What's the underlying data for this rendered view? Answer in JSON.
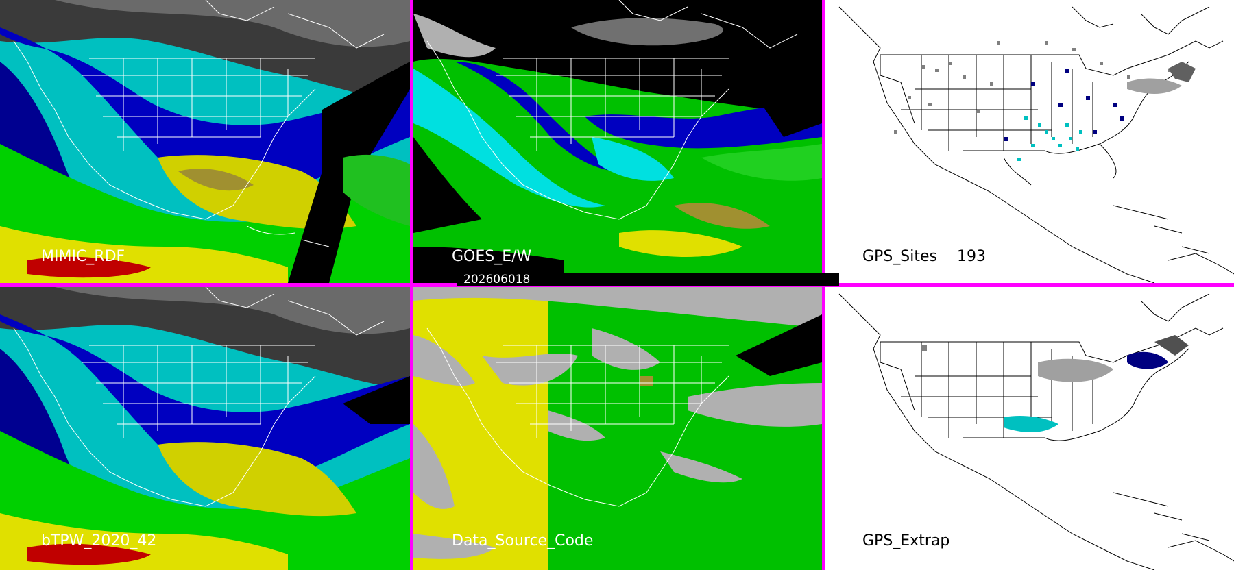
{
  "panels": {
    "mimic": {
      "label": "MIMIC_RDF"
    },
    "goes": {
      "label": "GOES_E/W"
    },
    "gps_sites": {
      "label": "GPS_Sites",
      "count": "193"
    },
    "btpw": {
      "label": "bTPW_2020_42"
    },
    "source": {
      "label": "Data_Source_Code"
    },
    "gps_extrap": {
      "label": "GPS_Extrap"
    }
  },
  "timestamp": "202606018",
  "colors": {
    "divider": "#ff00ff",
    "tpw_dark": "#3a3a3a",
    "tpw_gray": "#a0a0a0",
    "tpw_navy": "#000090",
    "tpw_blue": "#0000d0",
    "tpw_cyan": "#00e0e0",
    "tpw_green": "#00d000",
    "tpw_lime": "#60e000",
    "tpw_yellow": "#e0e000",
    "tpw_olive": "#a09030",
    "tpw_red": "#c00000",
    "source_yellow": "#e0e000",
    "source_green": "#00c000",
    "source_gray": "#b0b0b0"
  }
}
